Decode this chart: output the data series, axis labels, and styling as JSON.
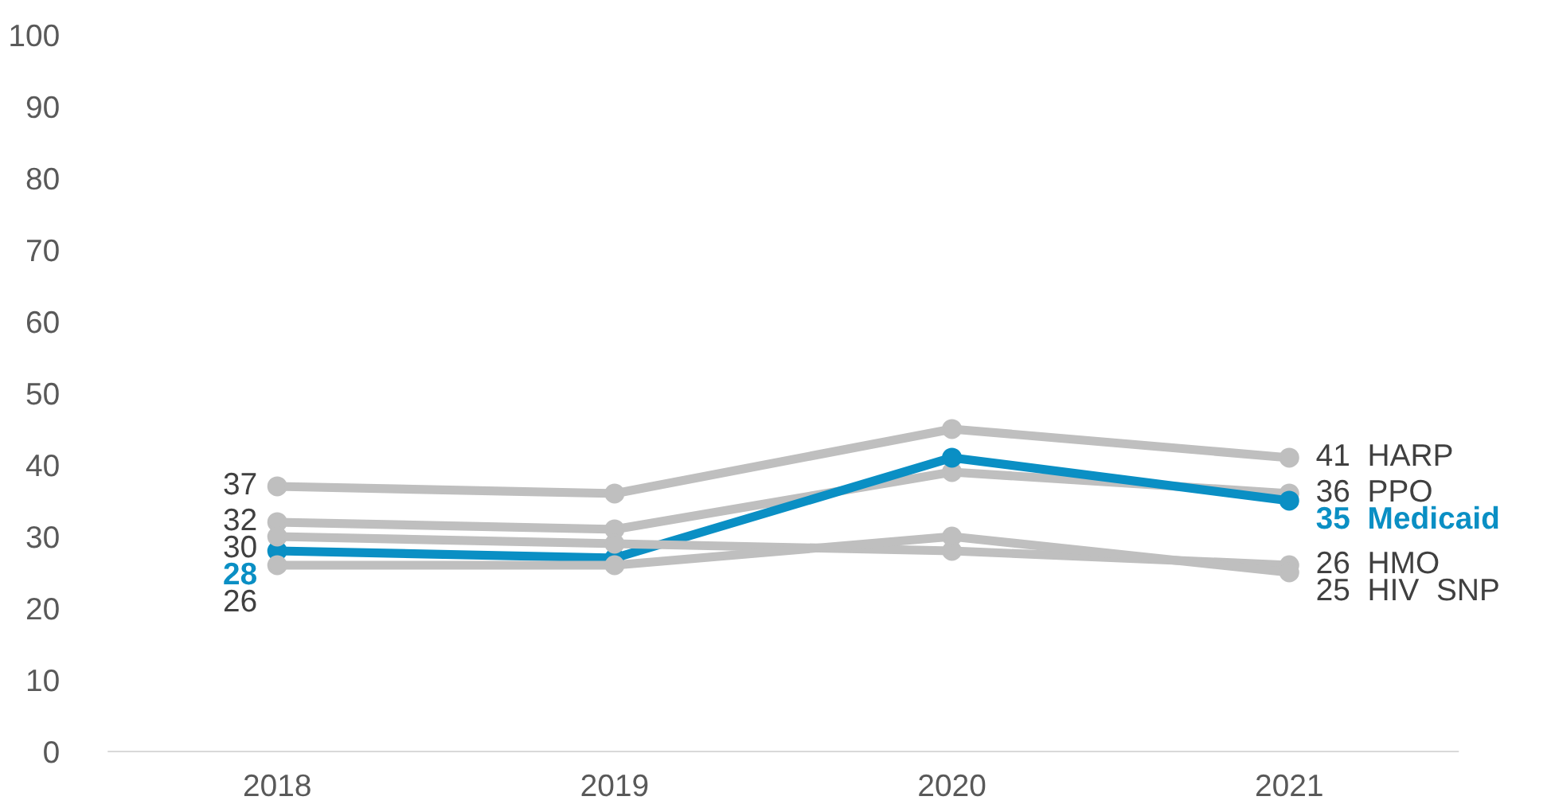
{
  "chart_data": {
    "type": "line",
    "categories": [
      "2018",
      "2019",
      "2020",
      "2021"
    ],
    "series": [
      {
        "name": "HARP",
        "color": "#bfbfbf",
        "values": [
          37,
          36,
          45,
          41
        ],
        "value_labels": [
          "37",
          null,
          null,
          "41"
        ]
      },
      {
        "name": "PPO",
        "color": "#bfbfbf",
        "values": [
          32,
          31,
          39,
          36
        ],
        "value_labels": [
          "32",
          null,
          null,
          "36"
        ]
      },
      {
        "name": "Medicaid",
        "color": "#0a8fc4",
        "values": [
          28,
          27,
          41,
          35
        ],
        "value_labels": [
          "28",
          null,
          null,
          "35"
        ]
      },
      {
        "name": "HMO",
        "color": "#bfbfbf",
        "values": [
          30,
          29,
          28,
          26
        ],
        "value_labels": [
          "30",
          null,
          null,
          "26"
        ]
      },
      {
        "name": "HIV  SNP",
        "color": "#bfbfbf",
        "values": [
          26,
          26,
          30,
          25
        ],
        "value_labels": [
          "26",
          null,
          null,
          "25"
        ]
      }
    ],
    "ylim": [
      0,
      100
    ],
    "yticks": [
      0,
      10,
      20,
      30,
      40,
      50,
      60,
      70,
      80,
      90,
      100
    ],
    "marker": "circle",
    "line_style": "solid",
    "grid": false,
    "legend": false
  }
}
